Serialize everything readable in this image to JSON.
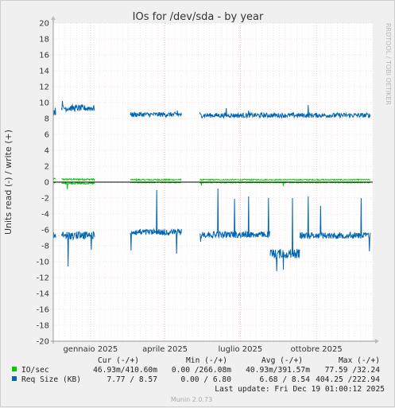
{
  "chart_data": {
    "type": "line",
    "title": "IOs for /dev/sda - by year",
    "ylabel": "Units read (-) / write (+)",
    "ylim": [
      -20,
      20
    ],
    "y_ticks": [
      "20",
      "18",
      "16",
      "14",
      "12",
      "10",
      "8",
      "6",
      "4",
      "2",
      "0",
      "-2",
      "-4",
      "-6",
      "-8",
      "-10",
      "-12",
      "-14",
      "-16",
      "-18",
      "-20"
    ],
    "x_range": [
      "2024-12-01",
      "2025-12-22"
    ],
    "x_ticks": [
      {
        "date": "2025-01-15",
        "label": "gennaio 2025"
      },
      {
        "date": "2025-04-15",
        "label": "aprile 2025"
      },
      {
        "date": "2025-07-15",
        "label": "luglio 2025"
      },
      {
        "date": "2025-10-15",
        "label": "ottobre 2025"
      }
    ],
    "grid": true,
    "series": [
      {
        "name": "IO/sec",
        "color": "#00cc00",
        "write_segments": [
          {
            "start": "2024-12-01",
            "end": "2024-12-04",
            "base": 0.4,
            "noise": 0.1
          },
          {
            "start": "2024-12-11",
            "end": "2025-01-20",
            "base": 0.35,
            "noise": 0.1
          },
          {
            "start": "2025-03-04",
            "end": "2025-05-05",
            "base": 0.3,
            "noise": 0.08
          },
          {
            "start": "2025-05-27",
            "end": "2025-12-19",
            "base": 0.3,
            "noise": 0.06
          }
        ],
        "read_segments": [
          {
            "start": "2024-12-01",
            "end": "2024-12-04",
            "base": 0.05,
            "noise": 0.05
          },
          {
            "start": "2024-12-11",
            "end": "2025-01-20",
            "base": 0.15,
            "noise": 0.1,
            "spikes": [
              {
                "date": "2024-12-18",
                "value": 0.9
              }
            ]
          },
          {
            "start": "2025-03-04",
            "end": "2025-05-05",
            "base": 0.05,
            "noise": 0.05
          },
          {
            "start": "2025-05-27",
            "end": "2025-12-19",
            "base": 0.05,
            "noise": 0.05,
            "spikes": [
              {
                "date": "2025-05-29",
                "value": 0.4
              },
              {
                "date": "2025-09-05",
                "value": 0.5
              }
            ]
          }
        ]
      },
      {
        "name": "Req Size (KB)",
        "color": "#0066b3",
        "write_segments": [
          {
            "start": "2024-12-01",
            "end": "2024-12-04",
            "base": 8.9,
            "noise": 0.5
          },
          {
            "start": "2024-12-11",
            "end": "2025-01-20",
            "base": 9.3,
            "noise": 0.4,
            "spikes": [
              {
                "date": "2024-12-12",
                "value": 10.2
              }
            ]
          },
          {
            "start": "2025-03-04",
            "end": "2025-05-05",
            "base": 8.5,
            "noise": 0.3,
            "spikes": [
              {
                "date": "2025-04-30",
                "value": 9.0
              }
            ]
          },
          {
            "start": "2025-05-27",
            "end": "2025-12-19",
            "base": 8.4,
            "noise": 0.3,
            "spikes": [
              {
                "date": "2025-05-27",
                "value": 8.8
              },
              {
                "date": "2025-06-28",
                "value": 9.3
              },
              {
                "date": "2025-07-25",
                "value": 9.0
              },
              {
                "date": "2025-10-05",
                "value": 9.7
              }
            ]
          }
        ],
        "read_segments": [
          {
            "start": "2024-12-01",
            "end": "2024-12-04",
            "base": 6.8,
            "noise": 0.5
          },
          {
            "start": "2024-12-11",
            "end": "2025-01-20",
            "base": 6.7,
            "noise": 0.5,
            "spikes": [
              {
                "date": "2024-12-19",
                "value": 10.6
              },
              {
                "date": "2025-01-16",
                "value": 8.5
              }
            ]
          },
          {
            "start": "2025-03-04",
            "end": "2025-05-05",
            "base": 6.3,
            "noise": 0.4,
            "spikes": [
              {
                "date": "2025-03-05",
                "value": 8.6
              },
              {
                "date": "2025-04-05",
                "value": 1.0
              },
              {
                "date": "2025-04-29",
                "value": 9.0
              }
            ]
          },
          {
            "start": "2025-05-27",
            "end": "2025-08-20",
            "base": 6.6,
            "noise": 0.4,
            "spikes": [
              {
                "date": "2025-05-28",
                "value": 7.5
              },
              {
                "date": "2025-06-18",
                "value": 0.8
              },
              {
                "date": "2025-07-08",
                "value": 2.1
              },
              {
                "date": "2025-07-25",
                "value": 1.8
              },
              {
                "date": "2025-08-18",
                "value": 2.0
              }
            ]
          },
          {
            "start": "2025-08-20",
            "end": "2025-09-25",
            "base": 9.0,
            "noise": 0.6,
            "spikes": [
              {
                "date": "2025-08-28",
                "value": 11.2
              },
              {
                "date": "2025-09-05",
                "value": 11.0
              },
              {
                "date": "2025-09-16",
                "value": 2.0
              }
            ]
          },
          {
            "start": "2025-09-25",
            "end": "2025-12-19",
            "base": 6.7,
            "noise": 0.4,
            "spikes": [
              {
                "date": "2025-10-05",
                "value": 1.8
              },
              {
                "date": "2025-10-20",
                "value": 3.0
              },
              {
                "date": "2025-11-25",
                "value": 6.3
              },
              {
                "date": "2025-12-08",
                "value": 2.0
              },
              {
                "date": "2025-12-18",
                "value": 8.7
              }
            ]
          }
        ]
      }
    ]
  },
  "legend": {
    "headers": [
      "Cur (-/+)",
      "Min (-/+)",
      "Avg (-/+)",
      "Max (-/+)"
    ],
    "rows": [
      {
        "name": "IO/sec",
        "color": "#00cc00",
        "cur": "46.93m/410.60m",
        "min": "0.00 /266.08m",
        "avg": "40.93m/391.57m",
        "max": "77.59 /32.24"
      },
      {
        "name": "Req Size (KB)",
        "color": "#0066b3",
        "cur": "7.77 / 8.57",
        "min": "0.00 / 6.80",
        "avg": "6.68 / 8.54",
        "max": "404.25 /222.94"
      }
    ]
  },
  "last_update": "Last update: Fri Dec 19 01:00:12 2025",
  "side_text": "RRDTOOL / TOBI OETIKER",
  "footer": "Munin 2.0.73"
}
